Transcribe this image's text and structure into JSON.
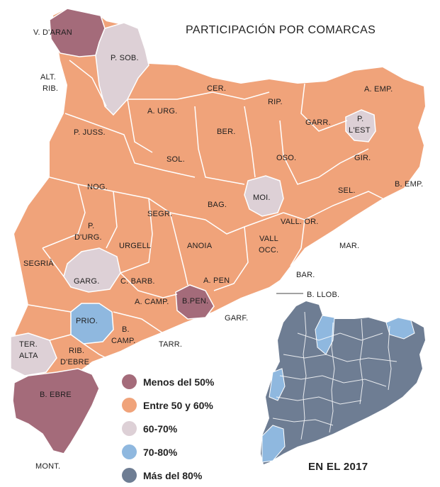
{
  "title": "PARTICIPACIÓN POR COMARCAS",
  "inset_title": "EN EL 2017",
  "colors": {
    "menos_50": "#a46b7a",
    "entre_50_60": "#f0a37a",
    "60_70": "#ddd0d6",
    "70_80": "#8fb8df",
    "mas_80": "#6e7d93",
    "border": "#ffffff"
  },
  "legend": [
    {
      "label": "Menos del 50%",
      "color": "#a46b7a"
    },
    {
      "label": "Entre 50 y 60%",
      "color": "#f0a37a"
    },
    {
      "label": "60-70%",
      "color": "#ddd0d6"
    },
    {
      "label": "70-80%",
      "color": "#8fb8df"
    },
    {
      "label": "Más del 80%",
      "color": "#6e7d93"
    }
  ],
  "regions": {
    "v_daran": "V. D'ARAN",
    "p_sob": "P. SOB.",
    "alt_rib_1": "ALT.",
    "alt_rib_2": "RIB.",
    "cer": "CER.",
    "rip": "RIP.",
    "a_emp": "A. EMP.",
    "a_urg": "A. URG.",
    "garr": "GARR.",
    "p_lest_1": "P.",
    "p_lest_2": "L'EST",
    "p_juss": "P. JUSS.",
    "ber": "BER.",
    "sol": "SOL.",
    "oso": "OSO.",
    "gir": "GIR.",
    "b_emp": "B. EMP.",
    "nog": "NOG.",
    "sel": "SEL.",
    "moi": "MOI.",
    "bag": "BAG.",
    "segr": "SEGR.",
    "p_durg_1": "P.",
    "p_durg_2": "D'URG.",
    "vall_or": "VALL. OR.",
    "urgell": "URGELL",
    "anoia": "ANOIA",
    "vall_occ_1": "VALL",
    "vall_occ_2": "OCC.",
    "mar": "MAR.",
    "segria": "SEGRIÀ",
    "garg": "GARG.",
    "c_barb": "C. BARB.",
    "a_pen": "A.  PEN",
    "bar": "BAR.",
    "a_camp": "A. CAMP.",
    "b_pen": "B.PEN.",
    "b_llob": "B. LLOB.",
    "garf": "GARF.",
    "prio": "PRIO.",
    "b_camp_1": "B.",
    "b_camp_2": "CAMP.",
    "tarr": "TARR.",
    "ter_alta_1": "TER.",
    "ter_alta_2": "ALTA",
    "rib_debre_1": "RIB.",
    "rib_debre_2": "D'EBRE",
    "b_ebre": "B. EBRE",
    "mont": "MONT."
  }
}
